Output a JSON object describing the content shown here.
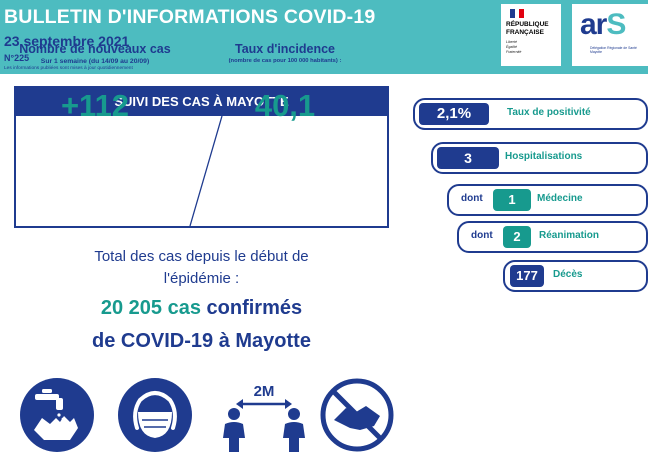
{
  "header": {
    "title": "BULLETIN D'INFORMATIONS COVID-19",
    "date": "23 septembre 2021",
    "number": "N°225",
    "note": "Les informations publiées sont mises à jour quotidiennement"
  },
  "logos": {
    "rf": {
      "line1": "RÉPUBLIQUE",
      "line2": "FRANÇAISE",
      "motto1": "Liberté",
      "motto2": "Égalité",
      "motto3": "Fraternité"
    },
    "ars": {
      "word_a": "ar",
      "word_s": "S",
      "tagline": "Délégation Régionale de Santé Mayotte"
    }
  },
  "cases": {
    "heading": "SUIVI DES CAS À MAYOTTE",
    "new_cases": {
      "label": "Nombre de nouveaux cas",
      "sub": "Sur 1 semaine (du 14/09 au 20/09)",
      "value": "+112"
    },
    "incidence": {
      "label": "Taux d'incidence",
      "sub": "(nombre de cas pour 100 000 habitants) :",
      "value": "40,1"
    }
  },
  "totals": {
    "line1": "Total des cas depuis le début de",
    "line2": "l'épidémie :",
    "count": "20 205 cas",
    "confirmed": "confirmés",
    "line4": "de COVID-19 à Mayotte"
  },
  "stats": {
    "positivity": {
      "value": "2,1%",
      "label": "Taux de positivité"
    },
    "hospital": {
      "value": "3",
      "label": "Hospitalisations"
    },
    "medicine": {
      "prefix": "dont",
      "value": "1",
      "label": "Médecine"
    },
    "icu": {
      "prefix": "dont",
      "value": "2",
      "label": "Réanimation"
    },
    "deaths": {
      "value": "177",
      "label": "Décès"
    }
  },
  "icons": {
    "distance_label": "2M",
    "names": [
      "wash-hands-icon",
      "face-mask-icon",
      "social-distance-icon",
      "no-handshake-icon"
    ]
  },
  "colors": {
    "teal": "#4dbcc0",
    "navy": "#1f3b8f",
    "green": "#179a8e"
  }
}
